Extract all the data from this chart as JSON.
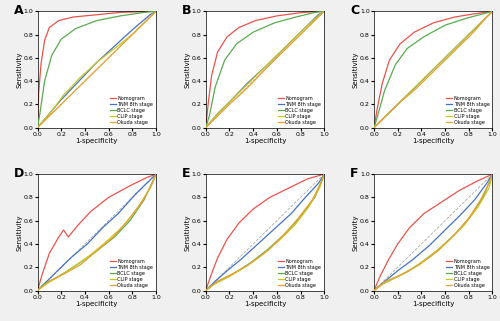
{
  "panel_labels": [
    "A",
    "B",
    "C",
    "D",
    "E",
    "F"
  ],
  "legend_labels": [
    "Nomogram",
    "TNM 8th stage",
    "BCLC stage",
    "CLIP stage",
    "Okuda stage"
  ],
  "colors": [
    "#e8534a",
    "#4472c4",
    "#5aaa50",
    "#c8c820",
    "#e8a030"
  ],
  "xlabel": "1-specificity",
  "ylabel": "Sensitivity",
  "xlim": [
    0.0,
    1.0
  ],
  "ylim": [
    0.0,
    1.0
  ],
  "xticks": [
    0.0,
    0.2,
    0.4,
    0.6,
    0.8,
    1.0
  ],
  "yticks": [
    0.0,
    0.2,
    0.4,
    0.6,
    0.8,
    1.0
  ],
  "fig_facecolor": "#f0f0f0",
  "ax_facecolor": "#ffffff",
  "curves": {
    "A": {
      "nomogram": [
        [
          0,
          0
        ],
        [
          0.01,
          0.3
        ],
        [
          0.03,
          0.55
        ],
        [
          0.06,
          0.75
        ],
        [
          0.1,
          0.86
        ],
        [
          0.18,
          0.92
        ],
        [
          0.3,
          0.95
        ],
        [
          0.5,
          0.97
        ],
        [
          0.7,
          0.99
        ],
        [
          1.0,
          1.0
        ]
      ],
      "tnm": [
        [
          0,
          0
        ],
        [
          0.05,
          0.06
        ],
        [
          0.1,
          0.12
        ],
        [
          0.2,
          0.24
        ],
        [
          0.35,
          0.4
        ],
        [
          0.5,
          0.56
        ],
        [
          0.65,
          0.7
        ],
        [
          0.8,
          0.84
        ],
        [
          0.95,
          0.97
        ],
        [
          1.0,
          1.0
        ]
      ],
      "bclc": [
        [
          0,
          0
        ],
        [
          0.02,
          0.12
        ],
        [
          0.06,
          0.4
        ],
        [
          0.12,
          0.62
        ],
        [
          0.2,
          0.76
        ],
        [
          0.32,
          0.85
        ],
        [
          0.5,
          0.92
        ],
        [
          0.7,
          0.96
        ],
        [
          0.9,
          0.99
        ],
        [
          1.0,
          1.0
        ]
      ],
      "clip": [
        [
          0,
          0
        ],
        [
          0.05,
          0.06
        ],
        [
          0.12,
          0.14
        ],
        [
          0.22,
          0.28
        ],
        [
          0.35,
          0.42
        ],
        [
          0.5,
          0.56
        ],
        [
          0.65,
          0.68
        ],
        [
          0.8,
          0.8
        ],
        [
          0.95,
          0.95
        ],
        [
          1.0,
          1.0
        ]
      ],
      "okuda": [
        [
          0,
          0
        ],
        [
          0.08,
          0.08
        ],
        [
          0.18,
          0.18
        ],
        [
          0.32,
          0.32
        ],
        [
          0.5,
          0.5
        ],
        [
          0.68,
          0.68
        ],
        [
          0.82,
          0.82
        ],
        [
          0.95,
          0.95
        ],
        [
          1.0,
          1.0
        ]
      ]
    },
    "B": {
      "nomogram": [
        [
          0,
          0
        ],
        [
          0.02,
          0.2
        ],
        [
          0.05,
          0.45
        ],
        [
          0.1,
          0.65
        ],
        [
          0.18,
          0.78
        ],
        [
          0.28,
          0.86
        ],
        [
          0.42,
          0.92
        ],
        [
          0.6,
          0.96
        ],
        [
          0.82,
          0.99
        ],
        [
          1.0,
          1.0
        ]
      ],
      "tnm": [
        [
          0,
          0
        ],
        [
          0.05,
          0.06
        ],
        [
          0.1,
          0.12
        ],
        [
          0.2,
          0.22
        ],
        [
          0.35,
          0.38
        ],
        [
          0.52,
          0.54
        ],
        [
          0.68,
          0.7
        ],
        [
          0.83,
          0.85
        ],
        [
          0.95,
          0.97
        ],
        [
          1.0,
          1.0
        ]
      ],
      "bclc": [
        [
          0,
          0
        ],
        [
          0.03,
          0.1
        ],
        [
          0.08,
          0.35
        ],
        [
          0.16,
          0.58
        ],
        [
          0.26,
          0.72
        ],
        [
          0.4,
          0.82
        ],
        [
          0.58,
          0.9
        ],
        [
          0.76,
          0.95
        ],
        [
          0.92,
          0.99
        ],
        [
          1.0,
          1.0
        ]
      ],
      "clip": [
        [
          0,
          0
        ],
        [
          0.05,
          0.06
        ],
        [
          0.12,
          0.14
        ],
        [
          0.24,
          0.26
        ],
        [
          0.38,
          0.4
        ],
        [
          0.54,
          0.56
        ],
        [
          0.7,
          0.72
        ],
        [
          0.84,
          0.86
        ],
        [
          0.95,
          0.96
        ],
        [
          1.0,
          1.0
        ]
      ],
      "okuda": [
        [
          0,
          0
        ],
        [
          0.08,
          0.08
        ],
        [
          0.2,
          0.2
        ],
        [
          0.35,
          0.34
        ],
        [
          0.52,
          0.52
        ],
        [
          0.68,
          0.68
        ],
        [
          0.82,
          0.82
        ],
        [
          0.95,
          0.95
        ],
        [
          1.0,
          1.0
        ]
      ]
    },
    "C": {
      "nomogram": [
        [
          0,
          0
        ],
        [
          0.03,
          0.18
        ],
        [
          0.07,
          0.38
        ],
        [
          0.13,
          0.58
        ],
        [
          0.22,
          0.72
        ],
        [
          0.34,
          0.82
        ],
        [
          0.5,
          0.9
        ],
        [
          0.68,
          0.95
        ],
        [
          0.86,
          0.98
        ],
        [
          1.0,
          1.0
        ]
      ],
      "tnm": [
        [
          0,
          0
        ],
        [
          0.05,
          0.05
        ],
        [
          0.12,
          0.12
        ],
        [
          0.22,
          0.22
        ],
        [
          0.36,
          0.36
        ],
        [
          0.52,
          0.52
        ],
        [
          0.68,
          0.68
        ],
        [
          0.83,
          0.83
        ],
        [
          0.95,
          0.95
        ],
        [
          1.0,
          1.0
        ]
      ],
      "bclc": [
        [
          0,
          0
        ],
        [
          0.03,
          0.1
        ],
        [
          0.09,
          0.32
        ],
        [
          0.18,
          0.54
        ],
        [
          0.28,
          0.68
        ],
        [
          0.42,
          0.78
        ],
        [
          0.6,
          0.88
        ],
        [
          0.78,
          0.94
        ],
        [
          0.93,
          0.98
        ],
        [
          1.0,
          1.0
        ]
      ],
      "clip": [
        [
          0,
          0
        ],
        [
          0.06,
          0.06
        ],
        [
          0.14,
          0.14
        ],
        [
          0.26,
          0.26
        ],
        [
          0.4,
          0.4
        ],
        [
          0.56,
          0.56
        ],
        [
          0.72,
          0.72
        ],
        [
          0.86,
          0.86
        ],
        [
          0.96,
          0.96
        ],
        [
          1.0,
          1.0
        ]
      ],
      "okuda": [
        [
          0,
          0
        ],
        [
          0.08,
          0.08
        ],
        [
          0.2,
          0.2
        ],
        [
          0.36,
          0.34
        ],
        [
          0.54,
          0.52
        ],
        [
          0.7,
          0.68
        ],
        [
          0.84,
          0.82
        ],
        [
          0.95,
          0.95
        ],
        [
          1.0,
          1.0
        ]
      ]
    },
    "D": {
      "nomogram": [
        [
          0,
          0
        ],
        [
          0.04,
          0.14
        ],
        [
          0.1,
          0.32
        ],
        [
          0.18,
          0.46
        ],
        [
          0.22,
          0.52
        ],
        [
          0.26,
          0.46
        ],
        [
          0.34,
          0.56
        ],
        [
          0.45,
          0.68
        ],
        [
          0.6,
          0.8
        ],
        [
          0.78,
          0.9
        ],
        [
          0.92,
          0.97
        ],
        [
          1.0,
          1.0
        ]
      ],
      "tnm": [
        [
          0,
          0
        ],
        [
          0.08,
          0.08
        ],
        [
          0.18,
          0.18
        ],
        [
          0.28,
          0.28
        ],
        [
          0.42,
          0.4
        ],
        [
          0.55,
          0.54
        ],
        [
          0.68,
          0.66
        ],
        [
          0.82,
          0.82
        ],
        [
          0.94,
          0.94
        ],
        [
          1.0,
          1.0
        ]
      ],
      "bclc": [
        [
          0,
          0
        ],
        [
          0.06,
          0.06
        ],
        [
          0.14,
          0.1
        ],
        [
          0.24,
          0.16
        ],
        [
          0.36,
          0.24
        ],
        [
          0.5,
          0.34
        ],
        [
          0.65,
          0.46
        ],
        [
          0.78,
          0.6
        ],
        [
          0.9,
          0.78
        ],
        [
          1.0,
          1.0
        ]
      ],
      "clip": [
        [
          0,
          0
        ],
        [
          0.08,
          0.06
        ],
        [
          0.18,
          0.12
        ],
        [
          0.3,
          0.2
        ],
        [
          0.44,
          0.3
        ],
        [
          0.58,
          0.42
        ],
        [
          0.72,
          0.55
        ],
        [
          0.84,
          0.7
        ],
        [
          0.95,
          0.88
        ],
        [
          1.0,
          1.0
        ]
      ],
      "okuda": [
        [
          0,
          0
        ],
        [
          0.1,
          0.08
        ],
        [
          0.22,
          0.14
        ],
        [
          0.36,
          0.22
        ],
        [
          0.5,
          0.34
        ],
        [
          0.64,
          0.46
        ],
        [
          0.76,
          0.6
        ],
        [
          0.88,
          0.76
        ],
        [
          0.96,
          0.9
        ],
        [
          1.0,
          1.0
        ]
      ]
    },
    "E": {
      "nomogram": [
        [
          0,
          0
        ],
        [
          0.04,
          0.12
        ],
        [
          0.1,
          0.28
        ],
        [
          0.18,
          0.44
        ],
        [
          0.28,
          0.58
        ],
        [
          0.4,
          0.7
        ],
        [
          0.54,
          0.8
        ],
        [
          0.7,
          0.88
        ],
        [
          0.86,
          0.96
        ],
        [
          1.0,
          1.0
        ]
      ],
      "tnm": [
        [
          0,
          0
        ],
        [
          0.08,
          0.08
        ],
        [
          0.18,
          0.17
        ],
        [
          0.3,
          0.27
        ],
        [
          0.44,
          0.4
        ],
        [
          0.58,
          0.53
        ],
        [
          0.72,
          0.66
        ],
        [
          0.84,
          0.8
        ],
        [
          0.95,
          0.92
        ],
        [
          1.0,
          1.0
        ]
      ],
      "bclc": [
        [
          0,
          0
        ],
        [
          0.06,
          0.05
        ],
        [
          0.15,
          0.1
        ],
        [
          0.26,
          0.16
        ],
        [
          0.38,
          0.24
        ],
        [
          0.52,
          0.35
        ],
        [
          0.66,
          0.48
        ],
        [
          0.8,
          0.63
        ],
        [
          0.92,
          0.8
        ],
        [
          1.0,
          1.0
        ]
      ],
      "clip": [
        [
          0,
          0
        ],
        [
          0.08,
          0.06
        ],
        [
          0.2,
          0.12
        ],
        [
          0.33,
          0.2
        ],
        [
          0.47,
          0.3
        ],
        [
          0.62,
          0.43
        ],
        [
          0.75,
          0.56
        ],
        [
          0.87,
          0.72
        ],
        [
          0.96,
          0.88
        ],
        [
          1.0,
          1.0
        ]
      ],
      "okuda": [
        [
          0,
          0
        ],
        [
          0.1,
          0.08
        ],
        [
          0.22,
          0.14
        ],
        [
          0.36,
          0.22
        ],
        [
          0.52,
          0.34
        ],
        [
          0.66,
          0.48
        ],
        [
          0.78,
          0.62
        ],
        [
          0.9,
          0.78
        ],
        [
          0.97,
          0.92
        ],
        [
          1.0,
          1.0
        ]
      ]
    },
    "F": {
      "nomogram": [
        [
          0,
          0
        ],
        [
          0.05,
          0.12
        ],
        [
          0.12,
          0.26
        ],
        [
          0.2,
          0.4
        ],
        [
          0.3,
          0.54
        ],
        [
          0.42,
          0.66
        ],
        [
          0.57,
          0.76
        ],
        [
          0.72,
          0.86
        ],
        [
          0.87,
          0.94
        ],
        [
          1.0,
          1.0
        ]
      ],
      "tnm": [
        [
          0,
          0
        ],
        [
          0.08,
          0.07
        ],
        [
          0.2,
          0.17
        ],
        [
          0.32,
          0.26
        ],
        [
          0.46,
          0.38
        ],
        [
          0.6,
          0.52
        ],
        [
          0.73,
          0.65
        ],
        [
          0.85,
          0.78
        ],
        [
          0.95,
          0.92
        ],
        [
          1.0,
          1.0
        ]
      ],
      "bclc": [
        [
          0,
          0
        ],
        [
          0.06,
          0.05
        ],
        [
          0.16,
          0.1
        ],
        [
          0.28,
          0.16
        ],
        [
          0.4,
          0.24
        ],
        [
          0.54,
          0.35
        ],
        [
          0.68,
          0.48
        ],
        [
          0.8,
          0.62
        ],
        [
          0.92,
          0.8
        ],
        [
          1.0,
          1.0
        ]
      ],
      "clip": [
        [
          0,
          0
        ],
        [
          0.08,
          0.06
        ],
        [
          0.2,
          0.12
        ],
        [
          0.34,
          0.2
        ],
        [
          0.48,
          0.3
        ],
        [
          0.63,
          0.43
        ],
        [
          0.76,
          0.56
        ],
        [
          0.88,
          0.72
        ],
        [
          0.97,
          0.88
        ],
        [
          1.0,
          1.0
        ]
      ],
      "okuda": [
        [
          0,
          0
        ],
        [
          0.1,
          0.08
        ],
        [
          0.24,
          0.14
        ],
        [
          0.38,
          0.22
        ],
        [
          0.54,
          0.34
        ],
        [
          0.68,
          0.48
        ],
        [
          0.8,
          0.62
        ],
        [
          0.9,
          0.78
        ],
        [
          0.97,
          0.92
        ],
        [
          1.0,
          1.0
        ]
      ]
    }
  }
}
